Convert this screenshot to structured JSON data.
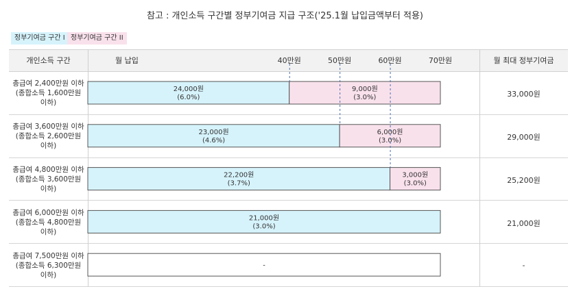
{
  "title": "참고 : 개인소득 구간별 정부기여금 지급 구조('25.1월 납입금액부터 적용)",
  "legend": [
    "정부기여금 구간 I",
    "정부기여금 구간 II"
  ],
  "header": {
    "income_col": "개인소득 구간",
    "monthly_payment": "월 납입",
    "max_col": "월 최대 정부기여금"
  },
  "colors": {
    "tier1": "#d6f3fb",
    "tier2": "#f9e1ec",
    "border": "#555555",
    "dashed": "#4a6fb0"
  },
  "chart_data": {
    "type": "bar",
    "orientation": "horizontal",
    "stacked": true,
    "x_unit": "만원",
    "xlim": [
      0,
      70
    ],
    "x_ticks": [
      40,
      50,
      60,
      70
    ],
    "x_tick_labels": [
      "40만원",
      "50만원",
      "60만원",
      "70만원"
    ],
    "categories": [
      "총급여 2,400만원 이하 (종합소득 1,600만원 이하)",
      "총급여 3,600만원 이하 (종합소득 2,600만원 이하)",
      "총급여 4,800만원 이하 (종합소득 3,600만원 이하)",
      "총급여 6,000만원 이하 (종합소득 4,800만원 이하)",
      "총급여 7,500만원 이하 (종합소득 6,300만원 이하)"
    ],
    "category_lines": [
      [
        "총급여 2,400만원 이하",
        "(종합소득 1,600만원",
        "이하)"
      ],
      [
        "총급여 3,600만원 이하",
        "(종합소득 2,600만원",
        "이하)"
      ],
      [
        "총급여 4,800만원 이하",
        "(종합소득 3,600만원",
        "이하)"
      ],
      [
        "총급여 6,000만원 이하",
        "(종합소득 4,800만원",
        "이하)"
      ],
      [
        "총급여 7,500만원 이하",
        "(종합소득 6,300만원",
        "이하)"
      ]
    ],
    "tier1_end": [
      40,
      50,
      60,
      70,
      null
    ],
    "series": [
      {
        "name": "정부기여금 구간 I",
        "amount_labels": [
          "24,000원",
          "23,000원",
          "22,200원",
          "21,000원",
          null
        ],
        "rate_labels": [
          "(6.0%)",
          "(4.6%)",
          "(3.7%)",
          "(3.0%)",
          null
        ]
      },
      {
        "name": "정부기여금 구간 II",
        "amount_labels": [
          "9,000원",
          "6,000원",
          "3,000원",
          null,
          null
        ],
        "rate_labels": [
          "(3.0%)",
          "(3.0%)",
          "(3.0%)",
          null,
          null
        ]
      }
    ],
    "empty_label": "-",
    "max_contribution": [
      "33,000원",
      "29,000원",
      "25,200원",
      "21,000원",
      "-"
    ]
  }
}
